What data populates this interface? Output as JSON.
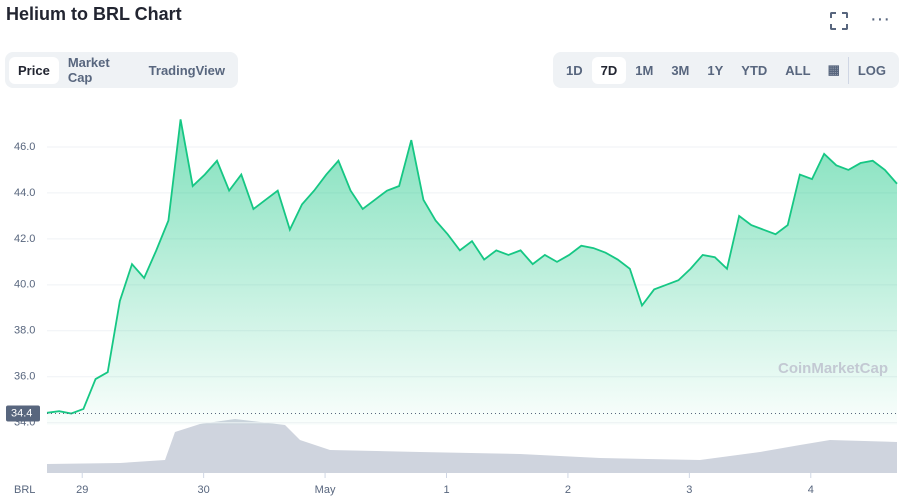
{
  "header": {
    "title": "Helium to BRL Chart"
  },
  "tabs": [
    "Price",
    "Market Cap",
    "TradingView"
  ],
  "ranges": [
    "1D",
    "7D",
    "1M",
    "3M",
    "1Y",
    "YTD",
    "ALL",
    "LOG"
  ],
  "watermark": "CoinMarketCap",
  "chart_data": {
    "type": "line",
    "x_label": "BRL",
    "x": [
      -0.29,
      -0.19,
      -0.09,
      0.01,
      0.11,
      0.21,
      0.31,
      0.41,
      0.51,
      0.61,
      0.71,
      0.81,
      0.91,
      1.01,
      1.11,
      1.21,
      1.31,
      1.41,
      1.51,
      1.61,
      1.71,
      1.81,
      1.91,
      2.01,
      2.11,
      2.21,
      2.31,
      2.41,
      2.51,
      2.61,
      2.71,
      2.81,
      2.91,
      3.01,
      3.11,
      3.21,
      3.31,
      3.41,
      3.51,
      3.61,
      3.71,
      3.81,
      3.91,
      4.01,
      4.11,
      4.21,
      4.31,
      4.41,
      4.51,
      4.61,
      4.71,
      4.81,
      4.91,
      5.01,
      5.11,
      5.21,
      5.31,
      5.41,
      5.51,
      5.61,
      5.71,
      5.81,
      5.91,
      6.01,
      6.11,
      6.21,
      6.31,
      6.41,
      6.51,
      6.61,
      6.71
    ],
    "series": [
      {
        "name": "Price",
        "color": "#16c784",
        "values": [
          34.43,
          34.5,
          34.4,
          34.6,
          35.9,
          36.2,
          39.3,
          40.9,
          40.3,
          41.5,
          42.8,
          47.2,
          44.3,
          44.8,
          45.4,
          44.1,
          44.8,
          43.3,
          43.7,
          44.1,
          42.4,
          43.5,
          44.1,
          44.8,
          45.4,
          44.1,
          43.3,
          43.7,
          44.1,
          44.3,
          46.3,
          43.7,
          42.8,
          42.2,
          41.5,
          41.9,
          41.1,
          41.5,
          41.3,
          41.5,
          40.9,
          41.3,
          41.0,
          41.3,
          41.7,
          41.6,
          41.4,
          41.1,
          40.7,
          39.1,
          39.8,
          40.0,
          40.2,
          40.7,
          41.3,
          41.2,
          40.7,
          43.0,
          42.6,
          42.4,
          42.2,
          42.6,
          44.8,
          44.6,
          45.7,
          45.2,
          45.0,
          45.3,
          45.4,
          45.0,
          44.4
        ]
      }
    ],
    "reference_line": 34.4,
    "xlim": [
      -0.29,
      6.71
    ],
    "xticks": [
      {
        "value": 0,
        "label": "29"
      },
      {
        "value": 1,
        "label": "30"
      },
      {
        "value": 2,
        "label": "May"
      },
      {
        "value": 3,
        "label": "1"
      },
      {
        "value": 4,
        "label": "2"
      },
      {
        "value": 5,
        "label": "3"
      },
      {
        "value": 6,
        "label": "4"
      }
    ],
    "ylim": [
      33.9,
      48.0
    ],
    "yticks": [
      {
        "value": 34,
        "label": "34.0"
      },
      {
        "value": 36,
        "label": "36.0"
      },
      {
        "value": 38,
        "label": "38.0"
      },
      {
        "value": 40,
        "label": "40.0"
      },
      {
        "value": 42,
        "label": "42.0"
      },
      {
        "value": 44,
        "label": "44.0"
      },
      {
        "value": 46,
        "label": "46.0"
      }
    ],
    "grid": true
  }
}
